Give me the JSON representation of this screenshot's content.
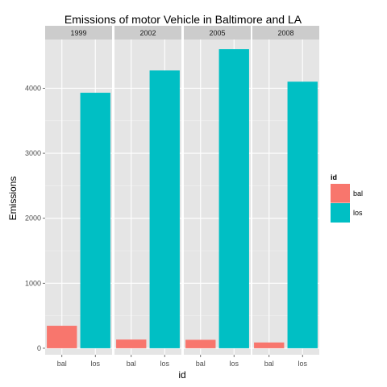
{
  "chart_data": {
    "type": "bar",
    "title": "Emissions of motor Vehicle in Baltimore and LA",
    "xlabel": "id",
    "ylabel": "Emissions",
    "ylim": [
      -100,
      4750
    ],
    "yticks": [
      0,
      1000,
      2000,
      3000,
      4000
    ],
    "grid": true,
    "legend": {
      "title": "id",
      "placement": "right",
      "entries": [
        {
          "label": "bal",
          "color": "#F8766D"
        },
        {
          "label": "los",
          "color": "#00BFC4"
        }
      ]
    },
    "categories": [
      "bal",
      "los"
    ],
    "facets": [
      {
        "label": "1999",
        "values": [
          346,
          3931
        ]
      },
      {
        "label": "2002",
        "values": [
          134,
          4274
        ]
      },
      {
        "label": "2005",
        "values": [
          130,
          4601
        ]
      },
      {
        "label": "2008",
        "values": [
          89,
          4101
        ]
      }
    ]
  },
  "colors": {
    "panel_background": "#E5E5E5",
    "strip_background": "#CCCCCC",
    "grid_major": "#FFFFFF",
    "grid_minor": "#F2F2F2"
  }
}
